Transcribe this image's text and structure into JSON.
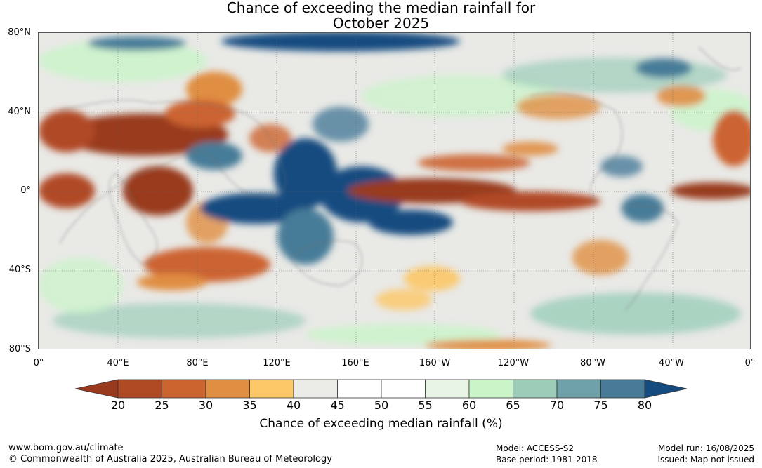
{
  "title": {
    "line1": "Chance of exceeding the median rainfall for",
    "line2": "October 2025"
  },
  "lat_labels": [
    "80°N",
    "40°N",
    "0°",
    "40°S",
    "80°S"
  ],
  "lon_labels": [
    "0°",
    "40°E",
    "80°E",
    "120°E",
    "160°E",
    "160°W",
    "120°W",
    "80°W",
    "40°W",
    "0°"
  ],
  "colorbar": {
    "ticks": [
      "20",
      "25",
      "30",
      "35",
      "40",
      "45",
      "50",
      "55",
      "60",
      "65",
      "70",
      "75",
      "80"
    ],
    "colors": [
      "#993a1f",
      "#b04a25",
      "#cc6430",
      "#e08e42",
      "#fcc766",
      "#ebebe8",
      "#ffffff",
      "#ffffff",
      "#e8f4e6",
      "#c9f5c8",
      "#9bcdb9",
      "#6fa2a8",
      "#477b98",
      "#164b80"
    ],
    "label": "Chance of exceeding median rainfall (%)"
  },
  "footer": {
    "website": "www.bom.gov.au/climate",
    "copyright": "© Commonwealth of Australia 2025, Australian Bureau of Meteorology",
    "model": "Model: ACCESS-S2",
    "base_period": "Base period: 1981-2018",
    "model_run": "Model run: 16/08/2025",
    "issued": "Issued: Map not issued"
  }
}
